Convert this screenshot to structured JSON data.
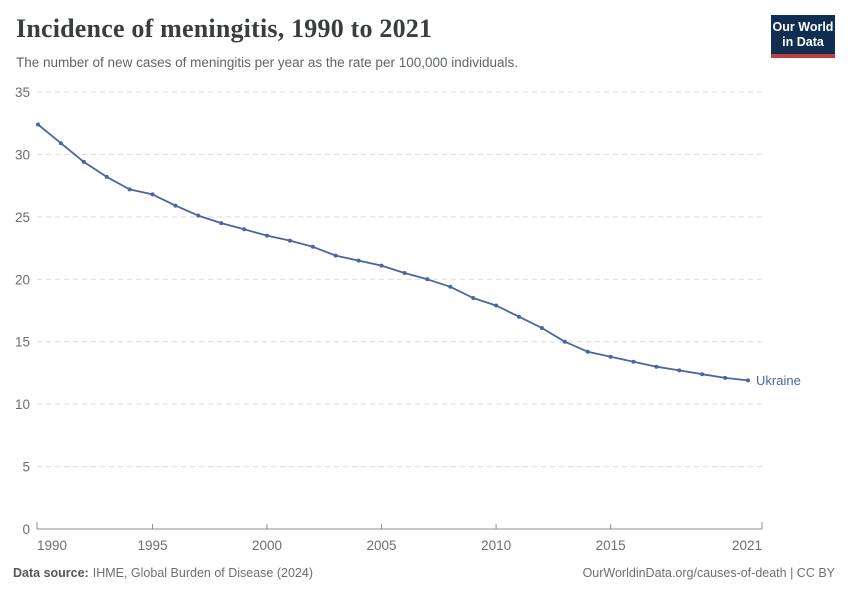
{
  "header": {
    "title": "Incidence of meningitis, 1990 to 2021",
    "subtitle": "The number of new cases of meningitis per year as the rate per 100,000 individuals.",
    "logo": {
      "line1": "Our World",
      "line2": "in Data"
    }
  },
  "chart_data": {
    "type": "line",
    "title": "Incidence of meningitis, 1990 to 2021",
    "subtitle": "The number of new cases of meningitis per year as the rate per 100,000 individuals.",
    "x": [
      1990,
      1991,
      1992,
      1993,
      1994,
      1995,
      1996,
      1997,
      1998,
      1999,
      2000,
      2001,
      2002,
      2003,
      2004,
      2005,
      2006,
      2007,
      2008,
      2009,
      2010,
      2011,
      2012,
      2013,
      2014,
      2015,
      2016,
      2017,
      2018,
      2019,
      2020,
      2021
    ],
    "series": [
      {
        "name": "Ukraine",
        "color": "#4766a3",
        "values": [
          32.4,
          30.9,
          29.4,
          28.2,
          27.2,
          26.8,
          25.9,
          25.1,
          24.5,
          24.0,
          23.5,
          23.1,
          22.6,
          21.9,
          21.5,
          21.1,
          20.5,
          20.0,
          19.4,
          18.5,
          17.9,
          17.0,
          16.1,
          15.0,
          14.2,
          13.8,
          13.4,
          13.0,
          12.7,
          12.4,
          12.1,
          11.9
        ]
      }
    ],
    "xlabel": "",
    "ylabel": "",
    "xlim": [
      1990,
      2021
    ],
    "ylim": [
      0,
      35
    ],
    "yticks": [
      0,
      5,
      10,
      15,
      20,
      25,
      30,
      35
    ],
    "xticks": [
      1990,
      1995,
      2000,
      2005,
      2010,
      2015,
      2021
    ],
    "grid": "horizontal-dashed",
    "legend": "end-of-line-label",
    "end_label": "Ukraine"
  },
  "footer": {
    "source_label": "Data source:",
    "source_text": "IHME, Global Burden of Disease (2024)",
    "license_text": "OurWorldinData.org/causes-of-death | CC BY"
  },
  "colors": {
    "line": "#4766a3",
    "grid": "#dcdcdc",
    "axis": "#8f8f8f",
    "tick_label": "#6e6e6e",
    "title": "#393d40",
    "subtitle": "#5d656a",
    "footer": "#6e6e6e",
    "logo_bg": "#102e52",
    "logo_bar": "#c13d46"
  }
}
